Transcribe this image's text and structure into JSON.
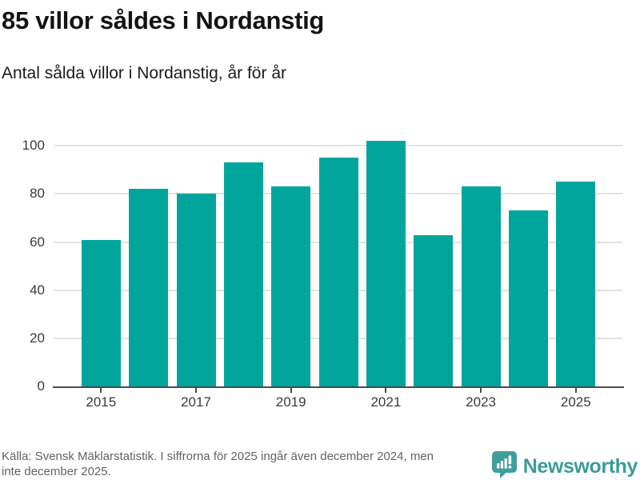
{
  "header": {
    "title": "85 villor såldes i Nordanstig",
    "subtitle": "Antal sålda villor i Nordanstig, år för år"
  },
  "chart_data": {
    "type": "bar",
    "title": "85 villor såldes i Nordanstig",
    "subtitle": "Antal sålda villor i Nordanstig, år för år",
    "categories": [
      2015,
      2016,
      2017,
      2018,
      2019,
      2020,
      2021,
      2022,
      2023,
      2024,
      2025
    ],
    "values": [
      61,
      82,
      80,
      93,
      83,
      95,
      102,
      63,
      83,
      73,
      85
    ],
    "xticks_shown": [
      2015,
      2017,
      2019,
      2021,
      2023,
      2025
    ],
    "yticks": [
      0,
      20,
      40,
      60,
      80,
      100
    ],
    "ylim": [
      0,
      105.6
    ],
    "xlabel": "",
    "ylabel": "",
    "grid": "horizontal",
    "legend": "none",
    "bar_color": "#00a59b"
  },
  "colors": {
    "bar": "#00a59b",
    "gridline": "#e2e2e2",
    "axis": "#4a4a4a",
    "logo_teal": "#3b9c97"
  },
  "footer": {
    "source_line1": "Källa: Svensk Mäklarstatistik. I siffrorna för 2025 ingår även december 2024, men",
    "source_line2": "inte december 2025.",
    "logo_text": "Newsworthy",
    "logo_icon": "speech-bubble-bar-chart-icon"
  }
}
